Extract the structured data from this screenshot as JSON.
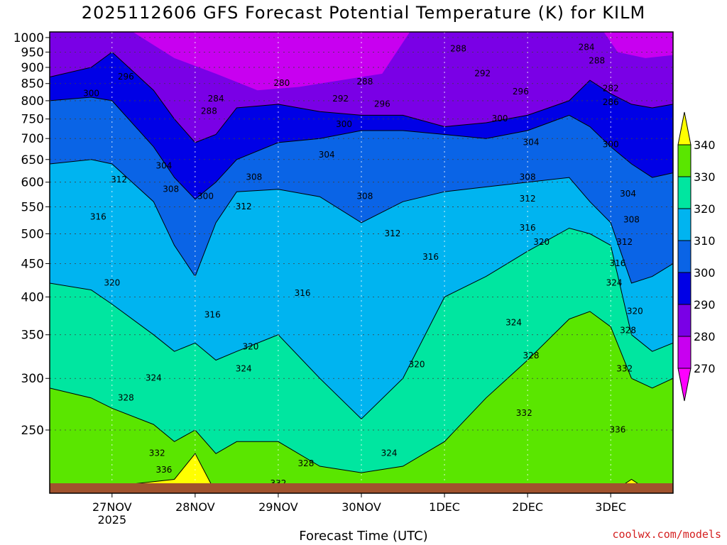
{
  "title": "2025112606 GFS Forecast Potential Temperature (K) for KILM",
  "credit": "coolwx.com/models",
  "colors": {
    "band_lt270": "#ff00ff",
    "band_270_280": "#c800f0",
    "band_280_290": "#7a00e6",
    "band_290_300": "#0000e6",
    "band_300_310": "#0a64e6",
    "band_310_320": "#00b4f0",
    "band_320_330": "#00e6a0",
    "band_330_340": "#5ae600",
    "band_ge340": "#ffff00",
    "ground": "#a0522d"
  },
  "chart_data": {
    "type": "heatmap",
    "title": "2025112606 GFS Forecast Potential Temperature (K) for KILM",
    "xlabel": "Forecast Time (UTC)",
    "ylabel": "",
    "x_ticks": [
      {
        "label": "27NOV",
        "sub": "2025",
        "hour": 18
      },
      {
        "label": "28NOV",
        "sub": "",
        "hour": 42
      },
      {
        "label": "29NOV",
        "sub": "",
        "hour": 66
      },
      {
        "label": "30NOV",
        "sub": "",
        "hour": 90
      },
      {
        "label": "1DEC",
        "sub": "",
        "hour": 114
      },
      {
        "label": "2DEC",
        "sub": "",
        "hour": 138
      },
      {
        "label": "3DEC",
        "sub": "",
        "hour": 162
      }
    ],
    "x_range_hours": [
      0,
      180
    ],
    "y_levels": [
      1000,
      950,
      900,
      850,
      800,
      750,
      700,
      650,
      600,
      550,
      500,
      450,
      400,
      350,
      300,
      250
    ],
    "y_range": [
      1020,
      200
    ],
    "y_scale": "log",
    "colorbar": {
      "levels": [
        270,
        280,
        290,
        300,
        310,
        320,
        330,
        340
      ],
      "labels": [
        "270",
        "280",
        "290",
        "300",
        "310",
        "320",
        "330",
        "340"
      ]
    },
    "series": [
      {
        "name": "290",
        "values": [
          [
            0,
            870
          ],
          [
            12,
            900
          ],
          [
            18,
            950
          ],
          [
            30,
            830
          ],
          [
            36,
            750
          ],
          [
            42,
            690
          ],
          [
            48,
            710
          ],
          [
            54,
            780
          ],
          [
            66,
            790
          ],
          [
            78,
            770
          ],
          [
            90,
            760
          ],
          [
            102,
            760
          ],
          [
            114,
            730
          ],
          [
            126,
            740
          ],
          [
            138,
            760
          ],
          [
            150,
            800
          ],
          [
            156,
            860
          ],
          [
            162,
            820
          ],
          [
            168,
            790
          ],
          [
            174,
            780
          ],
          [
            180,
            790
          ]
        ]
      },
      {
        "name": "300",
        "values": [
          [
            0,
            800
          ],
          [
            12,
            810
          ],
          [
            18,
            800
          ],
          [
            30,
            680
          ],
          [
            36,
            610
          ],
          [
            42,
            565
          ],
          [
            48,
            600
          ],
          [
            54,
            650
          ],
          [
            66,
            690
          ],
          [
            78,
            700
          ],
          [
            90,
            720
          ],
          [
            102,
            720
          ],
          [
            114,
            710
          ],
          [
            126,
            700
          ],
          [
            138,
            720
          ],
          [
            150,
            760
          ],
          [
            156,
            730
          ],
          [
            162,
            680
          ],
          [
            168,
            640
          ],
          [
            174,
            610
          ],
          [
            180,
            620
          ]
        ]
      },
      {
        "name": "310",
        "values": [
          [
            0,
            640
          ],
          [
            12,
            650
          ],
          [
            18,
            640
          ],
          [
            30,
            560
          ],
          [
            36,
            480
          ],
          [
            42,
            430
          ],
          [
            48,
            520
          ],
          [
            54,
            580
          ],
          [
            66,
            585
          ],
          [
            78,
            570
          ],
          [
            90,
            520
          ],
          [
            102,
            560
          ],
          [
            114,
            580
          ],
          [
            126,
            590
          ],
          [
            138,
            600
          ],
          [
            150,
            610
          ],
          [
            156,
            560
          ],
          [
            162,
            520
          ],
          [
            168,
            420
          ],
          [
            174,
            430
          ],
          [
            180,
            450
          ]
        ]
      },
      {
        "name": "320",
        "values": [
          [
            0,
            420
          ],
          [
            12,
            410
          ],
          [
            18,
            390
          ],
          [
            30,
            350
          ],
          [
            36,
            330
          ],
          [
            42,
            340
          ],
          [
            48,
            320
          ],
          [
            54,
            330
          ],
          [
            66,
            350
          ],
          [
            78,
            300
          ],
          [
            90,
            260
          ],
          [
            102,
            300
          ],
          [
            114,
            400
          ],
          [
            126,
            430
          ],
          [
            138,
            470
          ],
          [
            150,
            510
          ],
          [
            156,
            500
          ],
          [
            162,
            480
          ],
          [
            168,
            350
          ],
          [
            174,
            330
          ],
          [
            180,
            340
          ]
        ]
      },
      {
        "name": "330",
        "values": [
          [
            0,
            290
          ],
          [
            12,
            280
          ],
          [
            18,
            270
          ],
          [
            30,
            255
          ],
          [
            36,
            240
          ],
          [
            42,
            250
          ],
          [
            48,
            230
          ],
          [
            54,
            240
          ],
          [
            66,
            240
          ],
          [
            78,
            220
          ],
          [
            90,
            215
          ],
          [
            102,
            220
          ],
          [
            114,
            240
          ],
          [
            126,
            280
          ],
          [
            138,
            320
          ],
          [
            150,
            370
          ],
          [
            156,
            380
          ],
          [
            162,
            360
          ],
          [
            168,
            300
          ],
          [
            174,
            290
          ],
          [
            180,
            300
          ]
        ]
      },
      {
        "name": "340",
        "values": [
          [
            0,
            200
          ],
          [
            36,
            210
          ],
          [
            42,
            230
          ],
          [
            48,
            200
          ],
          [
            114,
            200
          ],
          [
            162,
            200
          ],
          [
            168,
            210
          ],
          [
            174,
            200
          ],
          [
            180,
            200
          ]
        ]
      }
    ],
    "annotations": [
      {
        "text": "336",
        "hour": 33,
        "p": 217
      },
      {
        "text": "332",
        "hour": 31,
        "p": 230
      },
      {
        "text": "332",
        "hour": 66,
        "p": 207
      },
      {
        "text": "328",
        "hour": 74,
        "p": 222
      },
      {
        "text": "324",
        "hour": 98,
        "p": 230
      },
      {
        "text": "328",
        "hour": 22,
        "p": 280
      },
      {
        "text": "324",
        "hour": 30,
        "p": 300
      },
      {
        "text": "324",
        "hour": 56,
        "p": 310
      },
      {
        "text": "320",
        "hour": 58,
        "p": 335
      },
      {
        "text": "320",
        "hour": 106,
        "p": 315
      },
      {
        "text": "332",
        "hour": 137,
        "p": 265
      },
      {
        "text": "336",
        "hour": 164,
        "p": 250
      },
      {
        "text": "328",
        "hour": 139,
        "p": 325
      },
      {
        "text": "332",
        "hour": 166,
        "p": 310
      },
      {
        "text": "324",
        "hour": 134,
        "p": 365
      },
      {
        "text": "328",
        "hour": 167,
        "p": 355
      },
      {
        "text": "320",
        "hour": 169,
        "p": 380
      },
      {
        "text": "324",
        "hour": 163,
        "p": 420
      },
      {
        "text": "320",
        "hour": 18,
        "p": 420
      },
      {
        "text": "316",
        "hour": 47,
        "p": 375
      },
      {
        "text": "316",
        "hour": 73,
        "p": 405
      },
      {
        "text": "316",
        "hour": 110,
        "p": 460
      },
      {
        "text": "316",
        "hour": 164,
        "p": 450
      },
      {
        "text": "320",
        "hour": 142,
        "p": 485
      },
      {
        "text": "312",
        "hour": 166,
        "p": 485
      },
      {
        "text": "316",
        "hour": 14,
        "p": 530
      },
      {
        "text": "312",
        "hour": 99,
        "p": 500
      },
      {
        "text": "316",
        "hour": 138,
        "p": 510
      },
      {
        "text": "308",
        "hour": 168,
        "p": 525
      },
      {
        "text": "312",
        "hour": 56,
        "p": 550
      },
      {
        "text": "300",
        "hour": 45,
        "p": 570
      },
      {
        "text": "308",
        "hour": 35,
        "p": 585
      },
      {
        "text": "304",
        "hour": 167,
        "p": 575
      },
      {
        "text": "308",
        "hour": 91,
        "p": 570
      },
      {
        "text": "312",
        "hour": 138,
        "p": 565
      },
      {
        "text": "312",
        "hour": 20,
        "p": 605
      },
      {
        "text": "308",
        "hour": 59,
        "p": 610
      },
      {
        "text": "308",
        "hour": 138,
        "p": 610
      },
      {
        "text": "304",
        "hour": 33,
        "p": 635
      },
      {
        "text": "304",
        "hour": 80,
        "p": 660
      },
      {
        "text": "304",
        "hour": 139,
        "p": 690
      },
      {
        "text": "300",
        "hour": 162,
        "p": 685
      },
      {
        "text": "300",
        "hour": 85,
        "p": 735
      },
      {
        "text": "300",
        "hour": 130,
        "p": 750
      },
      {
        "text": "288",
        "hour": 46,
        "p": 770
      },
      {
        "text": "296",
        "hour": 96,
        "p": 790
      },
      {
        "text": "286",
        "hour": 162,
        "p": 795
      },
      {
        "text": "284",
        "hour": 48,
        "p": 805
      },
      {
        "text": "292",
        "hour": 84,
        "p": 805
      },
      {
        "text": "300",
        "hour": 12,
        "p": 820
      },
      {
        "text": "296",
        "hour": 136,
        "p": 825
      },
      {
        "text": "282",
        "hour": 162,
        "p": 835
      },
      {
        "text": "280",
        "hour": 67,
        "p": 850
      },
      {
        "text": "288",
        "hour": 91,
        "p": 855
      },
      {
        "text": "296",
        "hour": 22,
        "p": 870
      },
      {
        "text": "292",
        "hour": 125,
        "p": 880
      },
      {
        "text": "288",
        "hour": 158,
        "p": 920
      },
      {
        "text": "288",
        "hour": 118,
        "p": 960
      },
      {
        "text": "284",
        "hour": 155,
        "p": 965
      }
    ]
  }
}
